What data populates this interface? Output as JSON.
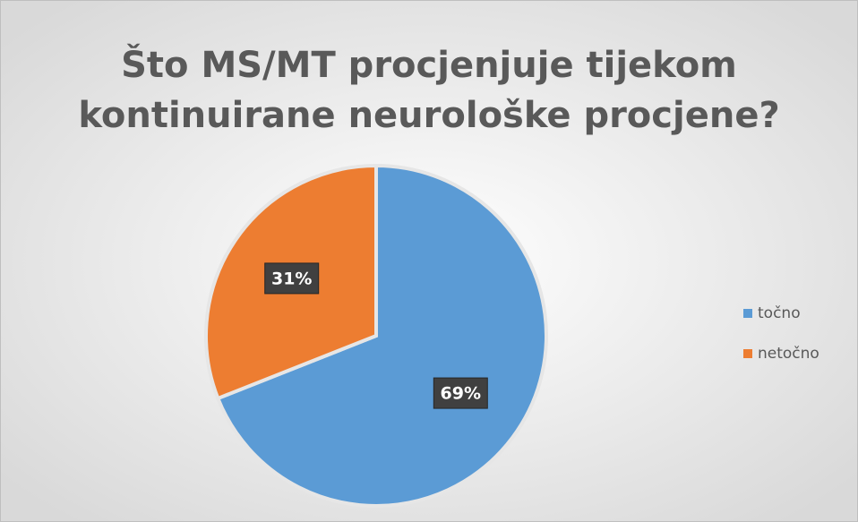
{
  "chart_data": {
    "type": "pie",
    "title": [
      "Što MS/MT procjenjuje tijekom",
      "kontinuirane neurološke procjene?"
    ],
    "categories": [
      "točno",
      "netočno"
    ],
    "values": [
      69,
      31
    ],
    "value_labels": [
      "69%",
      "31%"
    ],
    "colors": [
      "#5b9bd5",
      "#ed7d31"
    ],
    "legend": "right"
  }
}
